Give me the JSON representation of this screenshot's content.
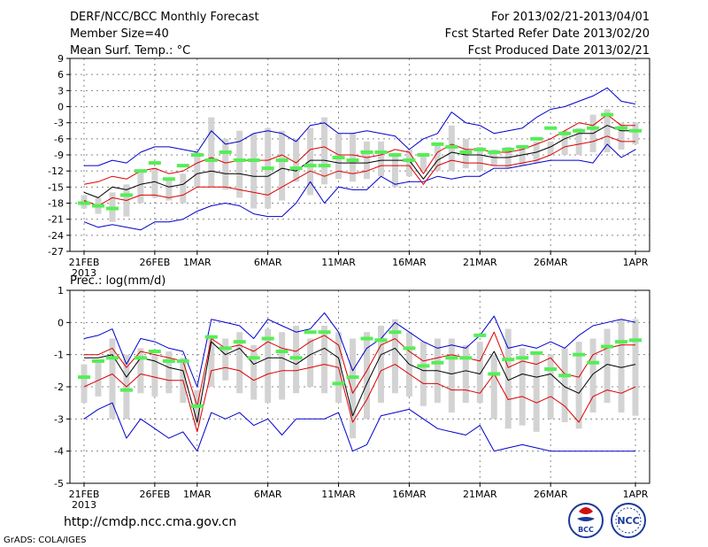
{
  "header": {
    "left": [
      "DERF/NCC/BCC Monthly Forecast",
      "Member Size=40",
      "Mean Surf. Temp.: °C"
    ],
    "right": [
      "For 2013/02/21-2013/04/01",
      "Fcst Started Refer Date 2013/02/20",
      "Fcst Produced Date 2013/02/21"
    ]
  },
  "footer": {
    "url": "http://cmdp.ncc.cma.gov.cn",
    "credit": "GrADS: COLA/IGES",
    "logo_bcc": "BCC",
    "logo_ncc": "NCC"
  },
  "colors": {
    "spread": "#d3d3d3",
    "minmax": "#0000cc",
    "band": "#dd0000",
    "mean": "#000000",
    "obs": "#55ee55",
    "grid": "#888888"
  },
  "chart_data": [
    {
      "type": "line",
      "title": "Mean Surf. Temp.: °C",
      "xlabel": "",
      "ylabel": "°C",
      "x_tick_labels": [
        "21FEB",
        "26FEB",
        "1MAR",
        "6MAR",
        "11MAR",
        "16MAR",
        "21MAR",
        "26MAR",
        "1APR"
      ],
      "x_year_label": "2013",
      "x_tick_days": [
        1,
        6,
        9,
        14,
        19,
        24,
        29,
        34,
        40
      ],
      "ylim": [
        -27,
        9
      ],
      "y_ticks": [
        -27,
        -24,
        -21,
        -18,
        -15,
        -12,
        -9,
        -6,
        -3,
        0,
        3,
        6,
        9
      ],
      "grid": true,
      "day_range": [
        1,
        40
      ],
      "series": [
        {
          "name": "spread_high",
          "values": [
            -16.5,
            -17,
            -16,
            -14.5,
            -12,
            -11.5,
            -13.5,
            -12.5,
            -8.5,
            -2,
            -6,
            -4.5,
            -5,
            -4,
            -4.5,
            -6,
            -4,
            -2,
            -5,
            -5,
            -6.5,
            -6.5,
            -9,
            -8,
            -9,
            -7,
            -3.5,
            -6,
            -7.5,
            -8,
            -7.5,
            -7.5,
            -6.5,
            -6.5,
            -4.5,
            -4,
            -1.5,
            -0.5,
            -3,
            -3
          ]
        },
        {
          "name": "spread_low",
          "values": [
            -19,
            -20,
            -21.5,
            -20.5,
            -18,
            -17,
            -17.5,
            -18,
            -15,
            -15,
            -15.5,
            -17,
            -19,
            -19,
            -17.5,
            -14,
            -16.5,
            -14.5,
            -13.5,
            -14,
            -13.5,
            -13,
            -15,
            -13,
            -12,
            -12,
            -12,
            -11.5,
            -12,
            -11,
            -11.5,
            -11,
            -10.5,
            -9,
            -9,
            -9,
            -8.5,
            -8.5,
            -8,
            -7
          ]
        },
        {
          "name": "minimum",
          "values": [
            -21.5,
            -22.5,
            -22,
            -22.5,
            -23,
            -21.5,
            -21.5,
            -21,
            -19.5,
            -18.5,
            -18,
            -18.5,
            -20,
            -20.5,
            -20.5,
            -18,
            -14,
            -18,
            -15,
            -15.5,
            -15.5,
            -13,
            -14.5,
            -14,
            -14,
            -13,
            -13.5,
            -13,
            -13,
            -11.5,
            -11.5,
            -11,
            -10.5,
            -10,
            -10,
            -10,
            -10.5,
            -7,
            -9.5,
            -8
          ]
        },
        {
          "name": "maximum",
          "values": [
            -11,
            -11,
            -10,
            -10.5,
            -8.5,
            -7.5,
            -7.5,
            -8,
            -8.5,
            -4.5,
            -7,
            -6.5,
            -5,
            -4.5,
            -5,
            -6.5,
            -3.5,
            -3,
            -5,
            -5,
            -4.5,
            -5,
            -5.5,
            -8,
            -6,
            -5,
            -1,
            -3,
            -3.5,
            -5,
            -4.5,
            -4,
            -2,
            -0.5,
            0,
            1,
            2,
            3.5,
            1,
            0.5
          ]
        },
        {
          "name": "upper_band",
          "values": [
            -14.5,
            -14,
            -13,
            -13.5,
            -12,
            -11.5,
            -12.5,
            -12,
            -10.5,
            -9.5,
            -10.5,
            -10,
            -10,
            -10,
            -9,
            -10.5,
            -8,
            -7.5,
            -9,
            -9,
            -9.5,
            -9,
            -8,
            -8.5,
            -12.5,
            -8.5,
            -7,
            -8,
            -8,
            -8.5,
            -8.5,
            -8,
            -7,
            -6,
            -4.5,
            -3,
            -3.5,
            -1.5,
            -3.5,
            -3.5
          ]
        },
        {
          "name": "lower_band",
          "values": [
            -17.5,
            -18.5,
            -17,
            -17.5,
            -16.5,
            -16.5,
            -17,
            -16.5,
            -15,
            -15,
            -15,
            -15.5,
            -16,
            -16.5,
            -15,
            -13.5,
            -12,
            -13,
            -12,
            -12.5,
            -12,
            -11,
            -11,
            -11,
            -14.5,
            -11,
            -10,
            -10.5,
            -10.5,
            -11,
            -11,
            -10.5,
            -10,
            -9,
            -7.5,
            -7,
            -6.5,
            -5.5,
            -6.5,
            -6.5
          ]
        },
        {
          "name": "ensemble_mean",
          "values": [
            -16,
            -17,
            -15,
            -15.5,
            -14.5,
            -14,
            -15,
            -14.5,
            -12.5,
            -12,
            -12.5,
            -12.5,
            -13,
            -13,
            -11.5,
            -12,
            -10,
            -10,
            -10.5,
            -10.5,
            -10.5,
            -10,
            -10,
            -10,
            -13.5,
            -10,
            -8.5,
            -9,
            -9,
            -9.5,
            -9.5,
            -9,
            -8.5,
            -7.5,
            -6,
            -5,
            -5,
            -3.5,
            -4.5,
            -4.5
          ]
        },
        {
          "name": "observed",
          "values": [
            -18,
            -18.5,
            -19,
            -16.5,
            -12,
            -10.5,
            -13.5,
            -11,
            -9,
            -10,
            -8.5,
            -10,
            -10,
            -11.5,
            -10,
            -11.5,
            -11,
            -11,
            -9.5,
            -10,
            -8.5,
            -8.5,
            -9,
            -10,
            -9,
            -7,
            -7.5,
            -8.5,
            -8,
            -8.5,
            -8,
            -7.5,
            -6,
            -4,
            -5,
            -4.5,
            -4,
            -1.5,
            -4,
            -4.5
          ]
        }
      ]
    },
    {
      "type": "line",
      "title": "Prec.: log(mm/d)",
      "xlabel": "",
      "ylabel": "log(mm/d)",
      "x_tick_labels": [
        "21FEB",
        "26FEB",
        "1MAR",
        "6MAR",
        "11MAR",
        "16MAR",
        "21MAR",
        "26MAR",
        "1APR"
      ],
      "x_year_label": "2013",
      "x_tick_days": [
        1,
        6,
        9,
        14,
        19,
        24,
        29,
        34,
        40
      ],
      "ylim": [
        -5,
        1
      ],
      "y_ticks": [
        -5,
        -4,
        -3,
        -2,
        -1,
        0,
        1
      ],
      "grid": true,
      "day_range": [
        1,
        40
      ],
      "series": [
        {
          "name": "spread_high",
          "values": [
            -1.3,
            -1.2,
            -0.5,
            -1,
            -0.8,
            -1,
            -0.9,
            -1.1,
            -2.1,
            -0.5,
            -0.5,
            -0.3,
            -0.7,
            -0.2,
            -0.3,
            -0.1,
            -0.5,
            -0.1,
            -0.3,
            -0.5,
            -0.3,
            -0.1,
            0.1,
            -0.3,
            -0.6,
            -0.5,
            -0.5,
            -0.7,
            -0.6,
            -1,
            -0.2,
            -0.8,
            -0.9,
            -1,
            -0.8,
            -0.6,
            -0.5,
            -0.2,
            0.1,
            0.1
          ]
        },
        {
          "name": "spread_low",
          "values": [
            -2.5,
            -2.3,
            -3,
            -3,
            -2.2,
            -2.3,
            -2.2,
            -2.5,
            -3.2,
            -2,
            -1.8,
            -2.2,
            -2.4,
            -2.5,
            -2.4,
            -2.2,
            -2,
            -2.2,
            -2.5,
            -3.6,
            -3,
            -2.5,
            -2.2,
            -2.3,
            -2.6,
            -2.5,
            -2.8,
            -2.5,
            -2.5,
            -3,
            -3.3,
            -3.2,
            -3.4,
            -3,
            -3.1,
            -3.3,
            -2.8,
            -2.5,
            -2.8,
            -2.9
          ]
        },
        {
          "name": "minimum",
          "values": [
            -3,
            -2.7,
            -2.5,
            -3.6,
            -3,
            -3.3,
            -3.6,
            -3.4,
            -4,
            -2.8,
            -3,
            -2.8,
            -3.2,
            -3,
            -3.5,
            -3,
            -3,
            -3,
            -2.8,
            -4,
            -3.8,
            -2.9,
            -2.8,
            -2.7,
            -3,
            -3.3,
            -3.4,
            -3.5,
            -3.2,
            -4,
            -3.9,
            -3.8,
            -3.9,
            -4,
            -4,
            -4,
            -4,
            -4,
            -4,
            -4
          ]
        },
        {
          "name": "maximum",
          "values": [
            -0.5,
            -0.4,
            -0.2,
            -1.3,
            -0.5,
            -0.6,
            -0.8,
            -0.9,
            -2,
            0.1,
            0,
            -0.1,
            -0.5,
            0.1,
            -0.1,
            -0.3,
            -0.2,
            0.3,
            -0.3,
            -1.5,
            -0.8,
            -0.5,
            0,
            -0.3,
            -0.6,
            -0.8,
            -0.7,
            -0.8,
            -0.4,
            0.2,
            -0.8,
            -0.7,
            -0.8,
            -0.6,
            -0.8,
            -0.4,
            -0.1,
            0,
            0.1,
            0
          ]
        },
        {
          "name": "upper_band",
          "values": [
            -1,
            -1,
            -0.8,
            -1.4,
            -0.9,
            -1,
            -1.1,
            -1.2,
            -2.6,
            -0.5,
            -0.8,
            -0.7,
            -0.9,
            -0.6,
            -0.8,
            -0.9,
            -0.6,
            -0.4,
            -0.7,
            -2.2,
            -1.5,
            -0.7,
            -0.5,
            -0.9,
            -1.2,
            -1.1,
            -1,
            -1.1,
            -1.2,
            -0.3,
            -1.4,
            -1.2,
            -1.3,
            -1.1,
            -1.6,
            -1.7,
            -1,
            -0.8,
            -0.7,
            -0.7
          ]
        },
        {
          "name": "lower_band",
          "values": [
            -2,
            -1.8,
            -1.6,
            -2,
            -1.6,
            -1.7,
            -1.8,
            -1.8,
            -3.4,
            -1.5,
            -1.4,
            -1.5,
            -1.8,
            -1.6,
            -1.5,
            -1.5,
            -1.4,
            -1.3,
            -1.4,
            -3.1,
            -2.4,
            -1.5,
            -1.3,
            -1.6,
            -1.9,
            -1.9,
            -2.1,
            -2.1,
            -2.2,
            -1.6,
            -2.4,
            -2.3,
            -2.5,
            -2.3,
            -2.6,
            -3.1,
            -2.3,
            -2.1,
            -2.2,
            -2
          ]
        },
        {
          "name": "ensemble_mean",
          "values": [
            -1.1,
            -1.1,
            -1,
            -1.7,
            -1.1,
            -1.2,
            -1.4,
            -1.5,
            -3.1,
            -0.6,
            -1,
            -0.8,
            -1.3,
            -1.1,
            -1.1,
            -1.3,
            -1,
            -0.8,
            -1.1,
            -2.9,
            -1.9,
            -1,
            -0.8,
            -1.3,
            -1.5,
            -1.5,
            -1.6,
            -1.5,
            -1.6,
            -0.9,
            -1.8,
            -1.6,
            -1.7,
            -1.6,
            -2,
            -2.2,
            -1.6,
            -1.3,
            -1.4,
            -1.3
          ]
        },
        {
          "name": "observed",
          "values": [
            -1.7,
            -1.2,
            -1.1,
            -2.1,
            -1.1,
            -0.9,
            -1.2,
            -1.2,
            -2.6,
            -0.45,
            -0.8,
            -0.6,
            -1.1,
            -0.5,
            -0.9,
            -1.1,
            -0.3,
            -0.3,
            -1.9,
            -1.7,
            -0.5,
            -0.55,
            -0.3,
            -0.8,
            -1.35,
            -1.25,
            -1.1,
            -1.1,
            -0.4,
            -1.6,
            -1.15,
            -1.1,
            -0.95,
            -1.45,
            -1.65,
            -1,
            -1.25,
            -0.75,
            -0.6,
            -0.55
          ]
        }
      ]
    }
  ]
}
